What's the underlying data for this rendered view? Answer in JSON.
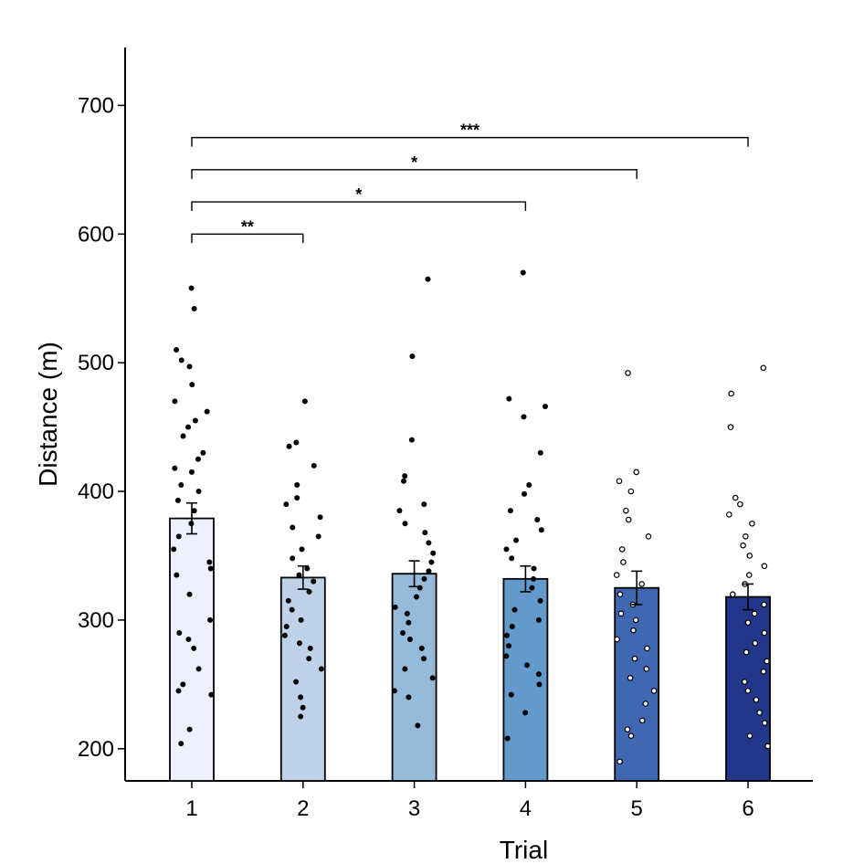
{
  "chart_data": {
    "type": "bar",
    "xlabel": "Trial",
    "ylabel": "Distance (m)",
    "categories": [
      "1",
      "2",
      "3",
      "4",
      "5",
      "6"
    ],
    "values": [
      379,
      333,
      336,
      332,
      325,
      318
    ],
    "errors": [
      12,
      9,
      10,
      10,
      13,
      10
    ],
    "colors": [
      "#eef1fd",
      "#bfd2ea",
      "#95bada",
      "#6399cb",
      "#3f67b2",
      "#22378a"
    ],
    "yticks": [
      200,
      300,
      400,
      500,
      600,
      700
    ],
    "ylim": [
      175,
      745
    ],
    "points": [
      [
        558,
        542,
        510,
        502,
        497,
        483,
        470,
        462,
        455,
        450,
        443,
        430,
        425,
        418,
        415,
        405,
        400,
        393,
        385,
        375,
        365,
        355,
        345,
        340,
        335,
        320,
        300,
        290,
        285,
        278,
        262,
        250,
        245,
        242,
        215,
        204
      ],
      [
        470,
        438,
        435,
        420,
        405,
        395,
        390,
        380,
        372,
        365,
        355,
        348,
        340,
        335,
        330,
        322,
        315,
        308,
        300,
        295,
        288,
        282,
        278,
        270,
        262,
        252,
        240,
        232,
        225
      ],
      [
        565,
        505,
        440,
        412,
        408,
        390,
        385,
        375,
        368,
        360,
        352,
        345,
        338,
        332,
        325,
        318,
        310,
        305,
        298,
        290,
        285,
        278,
        270,
        262,
        255,
        245,
        240,
        218
      ],
      [
        570,
        472,
        466,
        458,
        430,
        405,
        398,
        385,
        378,
        370,
        362,
        355,
        348,
        340,
        332,
        325,
        315,
        308,
        300,
        295,
        288,
        280,
        272,
        265,
        258,
        250,
        242,
        228,
        208
      ],
      [
        492,
        415,
        408,
        400,
        385,
        378,
        365,
        355,
        345,
        335,
        328,
        320,
        312,
        305,
        300,
        292,
        285,
        278,
        270,
        262,
        255,
        245,
        235,
        222,
        215,
        210,
        190
      ],
      [
        496,
        476,
        450,
        395,
        390,
        382,
        375,
        365,
        358,
        350,
        342,
        335,
        328,
        320,
        312,
        305,
        298,
        290,
        282,
        275,
        268,
        260,
        252,
        245,
        238,
        228,
        220,
        210,
        202
      ]
    ],
    "significance": [
      {
        "from": "1",
        "to": "6",
        "label": "***",
        "y": 675
      },
      {
        "from": "1",
        "to": "5",
        "label": "*",
        "y": 650
      },
      {
        "from": "1",
        "to": "4",
        "label": "*",
        "y": 625
      },
      {
        "from": "1",
        "to": "2",
        "label": "**",
        "y": 600
      }
    ]
  }
}
